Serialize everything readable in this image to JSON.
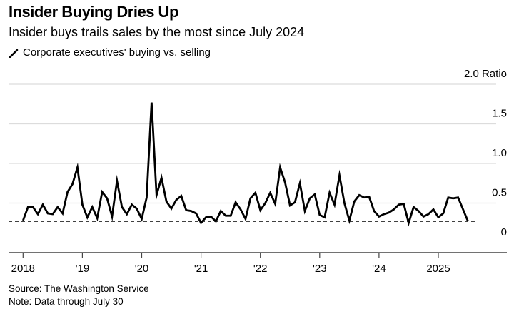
{
  "header": {
    "title": "Insider Buying Dries Up",
    "subtitle": "Insider buys trails sales by the most since July 2024"
  },
  "legend": {
    "icon": "slash-line-icon",
    "label": "Corporate executives' buying vs. selling"
  },
  "footer": {
    "source": "Source: The Washington Service",
    "note": "Note: Data through July 30"
  },
  "chart_data": {
    "type": "line",
    "title": "Insider Buying Dries Up",
    "subtitle": "Insider buys trails sales by the most since July 2024",
    "ylabel": "Ratio",
    "ylim": [
      0,
      2.0
    ],
    "xlim": [
      "2018-01",
      "2025-12"
    ],
    "grid": true,
    "line_color": "#000000",
    "y_ticks": [
      {
        "value": 0,
        "label": "0"
      },
      {
        "value": 0.5,
        "label": "0.5"
      },
      {
        "value": 1.0,
        "label": "1.0"
      },
      {
        "value": 1.5,
        "label": "1.5"
      },
      {
        "value": 2.0,
        "label": "2.0 Ratio"
      }
    ],
    "x_ticks": [
      {
        "year": 2018,
        "label": "2018"
      },
      {
        "year": 2019,
        "label": "'19"
      },
      {
        "year": 2020,
        "label": "'20"
      },
      {
        "year": 2021,
        "label": "'21"
      },
      {
        "year": 2022,
        "label": "'22"
      },
      {
        "year": 2023,
        "label": "'23"
      },
      {
        "year": 2024,
        "label": "'24"
      },
      {
        "year": 2025,
        "label": "2025"
      }
    ],
    "reference_line": {
      "value": 0.27,
      "style": "dashed"
    },
    "series": [
      {
        "start": "2018-01",
        "frequency": "monthly",
        "values": [
          0.28,
          0.45,
          0.45,
          0.36,
          0.48,
          0.37,
          0.36,
          0.45,
          0.37,
          0.64,
          0.74,
          0.95,
          0.48,
          0.32,
          0.45,
          0.31,
          0.64,
          0.56,
          0.33,
          0.78,
          0.45,
          0.36,
          0.48,
          0.43,
          0.3,
          0.57,
          1.77,
          0.6,
          0.82,
          0.52,
          0.43,
          0.54,
          0.59,
          0.41,
          0.4,
          0.37,
          0.25,
          0.32,
          0.33,
          0.27,
          0.4,
          0.34,
          0.34,
          0.51,
          0.42,
          0.3,
          0.56,
          0.63,
          0.41,
          0.5,
          0.63,
          0.49,
          0.95,
          0.76,
          0.47,
          0.51,
          0.75,
          0.4,
          0.56,
          0.61,
          0.35,
          0.32,
          0.63,
          0.48,
          0.85,
          0.5,
          0.28,
          0.52,
          0.6,
          0.57,
          0.58,
          0.4,
          0.33,
          0.36,
          0.38,
          0.42,
          0.48,
          0.49,
          0.25,
          0.45,
          0.4,
          0.33,
          0.36,
          0.42,
          0.32,
          0.37,
          0.57,
          0.56,
          0.57,
          0.42,
          0.27
        ]
      }
    ]
  }
}
